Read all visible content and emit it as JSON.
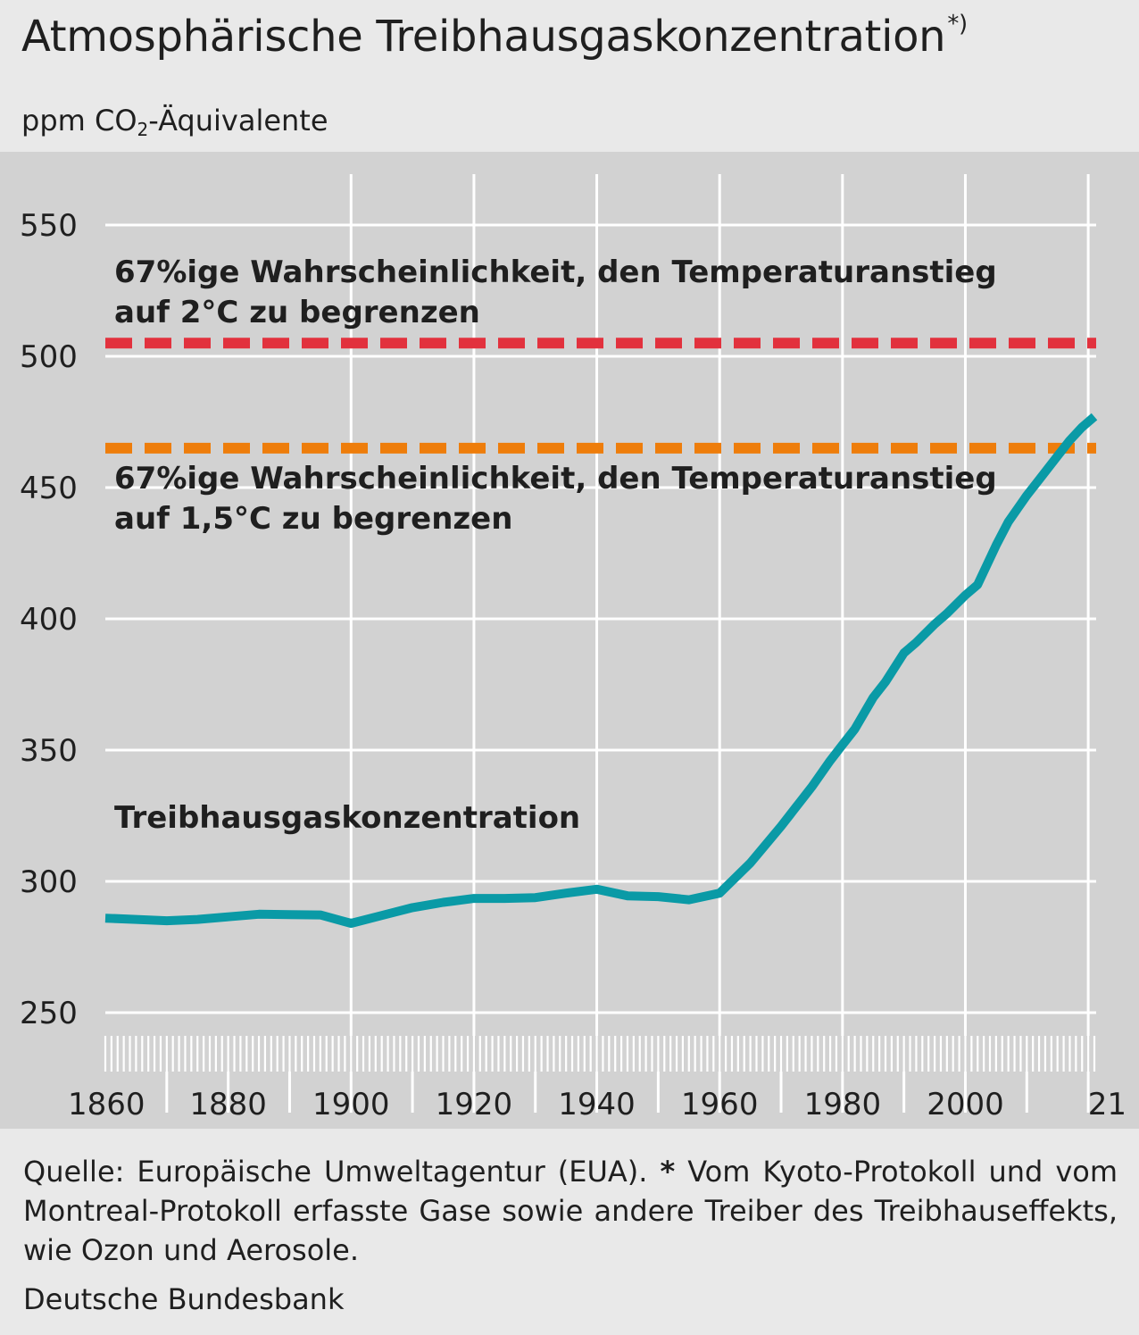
{
  "header": {
    "title": "Atmosphärische Treibhausgaskonzentration",
    "title_marker": "*)",
    "unit_prefix": "ppm CO",
    "unit_subscript": "2",
    "unit_suffix": "-Äquivalente"
  },
  "footer": {
    "footnote_source": "Quelle: Europäische Umweltagentur (EUA).",
    "footnote_star": "*",
    "footnote_text": "Vom Kyoto-Protokoll und vom Montreal-Protokoll erfasste Gase sowie andere Treiber des Treibhauseffekts, wie Ozon und Aerosole.",
    "publisher": "Deutsche Bundesbank"
  },
  "chart_data": {
    "type": "line",
    "title": "Atmosphärische Treibhausgaskonzentration",
    "ylabel": "ppm CO2-Äquivalente",
    "xlim": [
      1860,
      2021
    ],
    "ylim": [
      240,
      570
    ],
    "y_ticks": [
      250,
      300,
      350,
      400,
      450,
      500,
      550
    ],
    "x_tick_labels": [
      {
        "year": 1860,
        "label": "1860"
      },
      {
        "year": 1880,
        "label": "1880"
      },
      {
        "year": 1900,
        "label": "1900"
      },
      {
        "year": 1920,
        "label": "1920"
      },
      {
        "year": 1940,
        "label": "1940"
      },
      {
        "year": 1960,
        "label": "1960"
      },
      {
        "year": 1980,
        "label": "1980"
      },
      {
        "year": 2000,
        "label": "2000"
      },
      {
        "year": 2021,
        "label": "21"
      }
    ],
    "grid": true,
    "series": [
      {
        "name": "Treibhausgaskonzentration",
        "color": "#0a9aa6",
        "x": [
          1860,
          1865,
          1870,
          1875,
          1880,
          1885,
          1890,
          1895,
          1900,
          1905,
          1910,
          1915,
          1920,
          1925,
          1930,
          1935,
          1940,
          1945,
          1950,
          1955,
          1960,
          1965,
          1970,
          1972,
          1975,
          1978,
          1980,
          1982,
          1985,
          1987,
          1990,
          1992,
          1995,
          1997,
          2000,
          2002,
          2005,
          2007,
          2010,
          2012,
          2015,
          2017,
          2019,
          2021
        ],
        "y": [
          286,
          285.5,
          285,
          285.5,
          286.5,
          287.5,
          287.3,
          287.2,
          284,
          287,
          290,
          292,
          293.5,
          293.5,
          293.8,
          295.5,
          297,
          294.5,
          294.2,
          293,
          295.5,
          307,
          321,
          327,
          336,
          346,
          352,
          358,
          370,
          376,
          387,
          391,
          398,
          402,
          409,
          413,
          428,
          437,
          447,
          453,
          462,
          468,
          473,
          477
        ]
      }
    ],
    "thresholds": [
      {
        "name": "67%ige Wahrscheinlichkeit, den Temperaturanstieg auf 2°C zu begrenzen",
        "value": 505,
        "color": "#e2313d"
      },
      {
        "name": "67%ige Wahrscheinlichkeit, den Temperaturanstieg auf 1,5°C zu begrenzen",
        "value": 465,
        "color": "#ee7d0b"
      }
    ],
    "annotations": {
      "line_2c_1": "67%ige Wahrscheinlichkeit, den Temperaturanstieg",
      "line_2c_2": "auf 2°C zu begrenzen",
      "line_15c_1": "67%ige Wahrscheinlichkeit, den Temperaturanstieg",
      "line_15c_2": "auf 1,5°C zu begrenzen",
      "series_label": "Treibhausgaskonzentration"
    }
  }
}
